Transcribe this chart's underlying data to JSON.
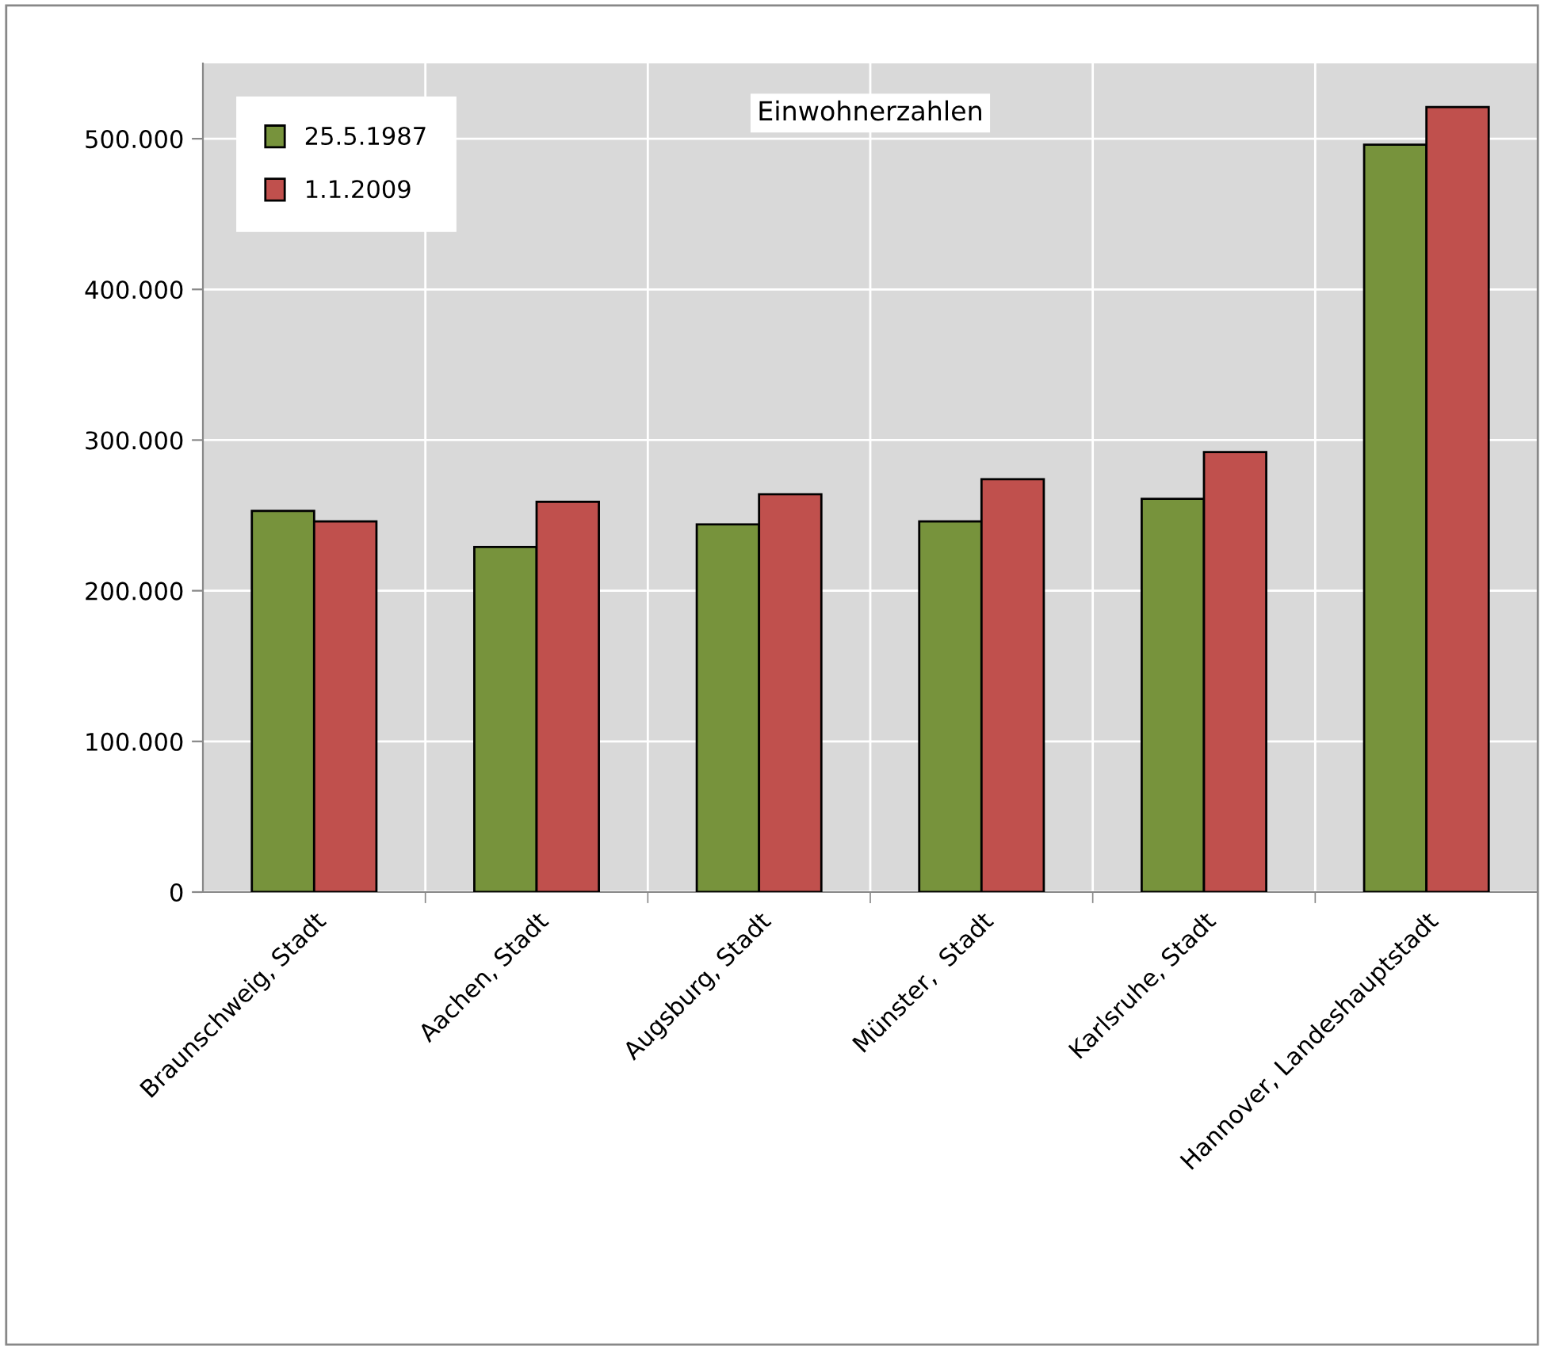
{
  "chart_data": {
    "type": "bar",
    "title": "Einwohnerzahlen",
    "categories": [
      "Braunschweig, Stadt",
      "Aachen, Stadt",
      "Augsburg, Stadt",
      "Münster,  Stadt",
      "Karlsruhe, Stadt",
      "Hannover, Landeshauptstadt"
    ],
    "series": [
      {
        "name": "25.5.1987",
        "color": "#77933c",
        "values": [
          253000,
          229000,
          244000,
          246000,
          261000,
          496000
        ]
      },
      {
        "name": "1.1.2009",
        "color": "#c0504d",
        "values": [
          246000,
          259000,
          264000,
          274000,
          292000,
          521000
        ]
      }
    ],
    "ylim": [
      0,
      550000
    ],
    "yticks": [
      {
        "value": 0,
        "label": "0"
      },
      {
        "value": 100000,
        "label": "100.000"
      },
      {
        "value": 200000,
        "label": "200.000"
      },
      {
        "value": 300000,
        "label": "300.000"
      },
      {
        "value": 400000,
        "label": "400.000"
      },
      {
        "value": 500000,
        "label": "500.000"
      }
    ],
    "grid": true,
    "legend": "top left"
  }
}
